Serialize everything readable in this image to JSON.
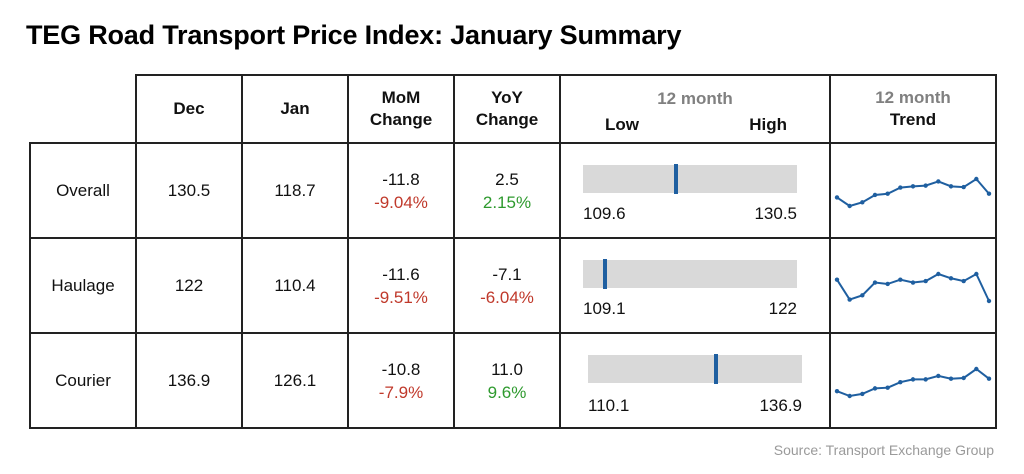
{
  "title": "TEG Road Transport Price Index: January Summary",
  "headers": {
    "dec": "Dec",
    "jan": "Jan",
    "mom_line1": "MoM",
    "mom_line2": "Change",
    "yoy_line1": "YoY",
    "yoy_line2": "Change",
    "range_top": "12 month",
    "range_low": "Low",
    "range_high": "High",
    "trend_top": "12 month",
    "trend_bottom": "Trend"
  },
  "source": "Source: Transport Exchange Group",
  "colors": {
    "negative": "#c0392b",
    "positive": "#2e9a2e",
    "marker": "#1f5fa0",
    "bar": "#d9d9d9",
    "sparkline": "#1f5fa0"
  },
  "chart_data": {
    "type": "table",
    "columns": [
      "",
      "Dec",
      "Jan",
      "MoM Change",
      "YoY Change",
      "12 month Low / High",
      "12 month Trend"
    ],
    "rows": [
      {
        "label": "Overall",
        "dec": "130.5",
        "jan": "118.7",
        "mom": "-11.8",
        "mom_pct": "-9.04%",
        "yoy": "2.5",
        "yoy_pct": "2.15%",
        "low": "109.6",
        "high": "130.5",
        "current": 118.7,
        "trend": [
          114,
          110.5,
          112,
          115,
          115.5,
          118,
          118.5,
          118.8,
          120.5,
          118.5,
          118.2,
          121.5,
          115.5
        ]
      },
      {
        "label": "Haulage",
        "dec": "122",
        "jan": "110.4",
        "mom": "-11.6",
        "mom_pct": "-9.51%",
        "yoy": "-7.1",
        "yoy_pct": "-6.04%",
        "low": "109.1",
        "high": "122",
        "current": 110.4,
        "trend": [
          118,
          111,
          112.5,
          117,
          116.5,
          118,
          117,
          117.5,
          120,
          118.5,
          117.5,
          120,
          110.5
        ]
      },
      {
        "label": "Courier",
        "dec": "136.9",
        "jan": "126.1",
        "mom": "-10.8",
        "mom_pct": "-7.9%",
        "yoy": "11.0",
        "yoy_pct": "9.6%",
        "low": "110.1",
        "high": "136.9",
        "current": 126.1,
        "trend": [
          115,
          111.5,
          113,
          117,
          117.5,
          121.5,
          123.5,
          123.5,
          126,
          124,
          124.5,
          131,
          124
        ]
      }
    ]
  }
}
